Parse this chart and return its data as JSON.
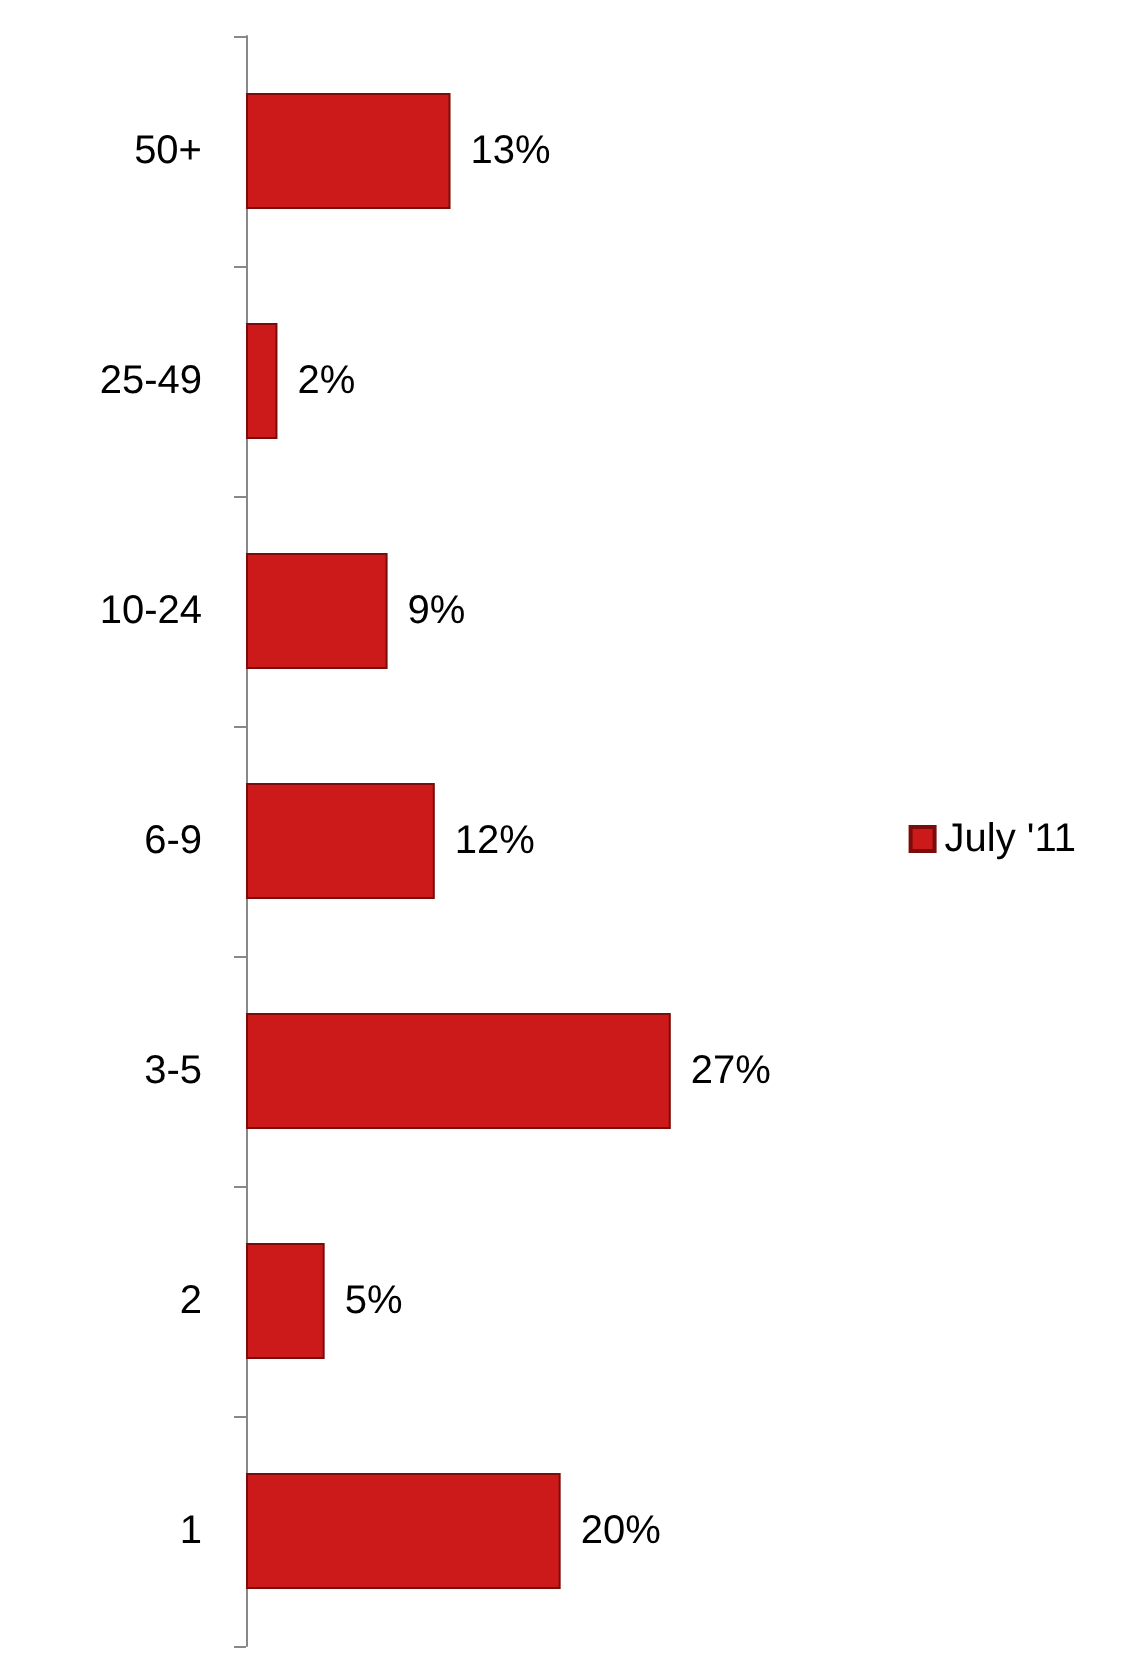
{
  "chart_data": {
    "type": "bar",
    "orientation": "horizontal",
    "categories": [
      "50+",
      "25-49",
      "10-24",
      "6-9",
      "3-5",
      "2",
      "1"
    ],
    "series": [
      {
        "name": "July '11",
        "color": "#cc1a1a",
        "values": [
          13,
          2,
          9,
          12,
          27,
          5,
          20
        ],
        "value_labels": [
          "13%",
          "2%",
          "9%",
          "12%",
          "27%",
          "5%",
          "20%"
        ]
      }
    ],
    "tick_labels": "y",
    "legend": "right"
  }
}
